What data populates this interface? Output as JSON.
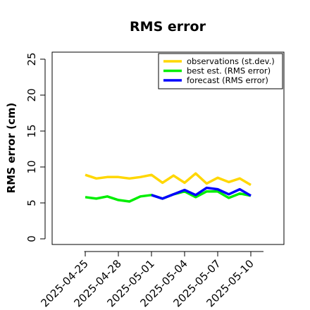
{
  "chart_data": {
    "type": "line",
    "title": "RMS error",
    "xlabel": "",
    "ylabel": "RMS error (cm)",
    "ylim": [
      0,
      25
    ],
    "yticks": [
      0,
      5,
      10,
      15,
      20,
      25
    ],
    "xlim": [
      "2025-04-22",
      "2025-05-13"
    ],
    "xticks": [
      {
        "label": "2025-04-25",
        "color": "#000000"
      },
      {
        "label": "2025-04-28",
        "color": "#000000"
      },
      {
        "label": "2025-05-01",
        "color": "#228b22"
      },
      {
        "label": "2025-05-04",
        "color": "#000000"
      },
      {
        "label": "2025-05-07",
        "color": "#000000"
      },
      {
        "label": "2025-05-10",
        "color": "#000000"
      }
    ],
    "grid": false,
    "legend_position": "top-right",
    "series": [
      {
        "name": "observations (st.dev.)",
        "color": "#ffd700",
        "x": [
          "2025-04-25",
          "2025-04-26",
          "2025-04-27",
          "2025-04-28",
          "2025-04-29",
          "2025-04-30",
          "2025-05-01",
          "2025-05-02",
          "2025-05-03",
          "2025-05-04",
          "2025-05-05",
          "2025-05-06",
          "2025-05-07",
          "2025-05-08",
          "2025-05-09",
          "2025-05-10"
        ],
        "values": [
          8.9,
          8.4,
          8.6,
          8.6,
          8.4,
          8.6,
          8.9,
          7.8,
          8.8,
          7.8,
          9.1,
          7.7,
          8.5,
          7.9,
          8.4,
          7.5
        ]
      },
      {
        "name": "best est. (RMS error)",
        "color": "#00ee00",
        "x": [
          "2025-04-25",
          "2025-04-26",
          "2025-04-27",
          "2025-04-28",
          "2025-04-29",
          "2025-04-30",
          "2025-05-01",
          "2025-05-02",
          "2025-05-03",
          "2025-05-04",
          "2025-05-05",
          "2025-05-06",
          "2025-05-07",
          "2025-05-08",
          "2025-05-09",
          "2025-05-10"
        ],
        "values": [
          5.8,
          5.6,
          5.9,
          5.4,
          5.2,
          5.9,
          6.1,
          5.6,
          6.2,
          6.6,
          5.8,
          6.6,
          6.6,
          5.7,
          6.3,
          6.0
        ]
      },
      {
        "name": "forecast (RMS error)",
        "color": "#0000ff",
        "x": [
          "2025-05-01",
          "2025-05-02",
          "2025-05-03",
          "2025-05-04",
          "2025-05-05",
          "2025-05-06",
          "2025-05-07",
          "2025-05-08",
          "2025-05-09",
          "2025-05-10"
        ],
        "values": [
          6.1,
          5.6,
          6.2,
          6.8,
          6.1,
          7.1,
          6.9,
          6.2,
          6.9,
          6.0
        ]
      }
    ]
  }
}
